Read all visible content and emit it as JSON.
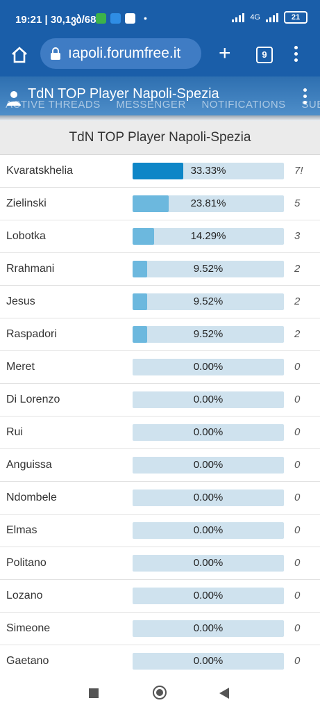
{
  "status_bar": {
    "time": "19:21",
    "date": "30,1ვბ/68",
    "network": "4G",
    "battery": "21"
  },
  "browser": {
    "url": "ıapoli.forumfree.it",
    "tab_count": "9"
  },
  "forum_header": {
    "title": "TdN TOP Player Napoli-Spezia",
    "nav_items": [
      "ACTIVE THREADS",
      "MESSENGER",
      "NOTIFICATIONS",
      "SUBSCRIB"
    ]
  },
  "poll": {
    "title": "TdN TOP Player Napoli-Spezia",
    "options": [
      {
        "name": "Kvaratskhelia",
        "percent": "33.33%",
        "fraction": 0.3333,
        "votes": "7!",
        "leader": true
      },
      {
        "name": "Zielinski",
        "percent": "23.81%",
        "fraction": 0.2381,
        "votes": "5",
        "leader": false
      },
      {
        "name": "Lobotka",
        "percent": "14.29%",
        "fraction": 0.1429,
        "votes": "3",
        "leader": false
      },
      {
        "name": "Rrahmani",
        "percent": "9.52%",
        "fraction": 0.0952,
        "votes": "2",
        "leader": false
      },
      {
        "name": "Jesus",
        "percent": "9.52%",
        "fraction": 0.0952,
        "votes": "2",
        "leader": false
      },
      {
        "name": "Raspadori",
        "percent": "9.52%",
        "fraction": 0.0952,
        "votes": "2",
        "leader": false
      },
      {
        "name": "Meret",
        "percent": "0.00%",
        "fraction": 0,
        "votes": "0",
        "leader": false
      },
      {
        "name": "Di Lorenzo",
        "percent": "0.00%",
        "fraction": 0,
        "votes": "0",
        "leader": false
      },
      {
        "name": "Rui",
        "percent": "0.00%",
        "fraction": 0,
        "votes": "0",
        "leader": false
      },
      {
        "name": "Anguissa",
        "percent": "0.00%",
        "fraction": 0,
        "votes": "0",
        "leader": false
      },
      {
        "name": "Ndombele",
        "percent": "0.00%",
        "fraction": 0,
        "votes": "0",
        "leader": false
      },
      {
        "name": "Elmas",
        "percent": "0.00%",
        "fraction": 0,
        "votes": "0",
        "leader": false
      },
      {
        "name": "Politano",
        "percent": "0.00%",
        "fraction": 0,
        "votes": "0",
        "leader": false
      },
      {
        "name": "Lozano",
        "percent": "0.00%",
        "fraction": 0,
        "votes": "0",
        "leader": false
      },
      {
        "name": "Simeone",
        "percent": "0.00%",
        "fraction": 0,
        "votes": "0",
        "leader": false
      },
      {
        "name": "Gaetano",
        "percent": "0.00%",
        "fraction": 0,
        "votes": "0",
        "leader": false
      }
    ]
  },
  "colors": {
    "brand_blue": "#1a5ea9",
    "leader_bar": "#0e86c7",
    "bar_fill": "#6cb8de",
    "bar_track": "#cfe2ee"
  }
}
